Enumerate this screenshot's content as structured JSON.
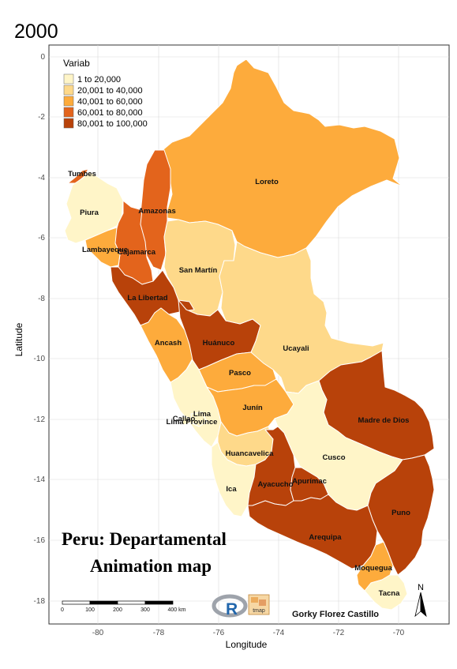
{
  "year_title": "2000",
  "axes": {
    "xlabel": "Longitude",
    "ylabel": "Latitude",
    "xticks": [
      "-80",
      "-78",
      "-76",
      "-74",
      "-72",
      "-70"
    ],
    "yticks": [
      "0",
      "-2",
      "-4",
      "-6",
      "-8",
      "-10",
      "-12",
      "-14",
      "-16",
      "-18"
    ]
  },
  "legend": {
    "title": "Variab",
    "items": [
      {
        "label": "1 to 20,000",
        "color": "#fff5c8"
      },
      {
        "label": "20,001 to 40,000",
        "color": "#fed98a"
      },
      {
        "label": "40,001 to 60,000",
        "color": "#fdab3c"
      },
      {
        "label": "60,001 to 80,000",
        "color": "#e3641c"
      },
      {
        "label": "80,001 to 100,000",
        "color": "#b8420a"
      }
    ]
  },
  "regions": {
    "loreto": "Loreto",
    "tumbes": "Tumbes",
    "piura": "Piura",
    "amazonas": "Amazonas",
    "lambayeque": "Lambayeque",
    "cajamarca": "Cajamarca",
    "san_martin": "San Martín",
    "la_libertad": "La Libertad",
    "ancash": "Ancash",
    "huanuco": "Huánuco",
    "ucayali": "Ucayali",
    "pasco": "Pasco",
    "lima": "Lima",
    "callao": "Callao",
    "lima_province": "Lima Province",
    "junin": "Junín",
    "madre_de_dios": "Madre de Dios",
    "huancavelica": "Huancavelica",
    "cusco": "Cusco",
    "ica": "Ica",
    "ayacucho": "Ayacucho",
    "apurimac": "Apurímac",
    "puno": "Puno",
    "arequipa": "Arequipa",
    "moquegua": "Moquegua",
    "tacna": "Tacna"
  },
  "map_title_line1": "Peru:  Departamental",
  "map_title_line2": "Animation map",
  "scale_labels": [
    "0",
    "100",
    "200",
    "300",
    "400 km"
  ],
  "north_label": "N",
  "r_logo": "R",
  "tmap_logo": "tmap",
  "author": "Gorky Florez Castillo"
}
